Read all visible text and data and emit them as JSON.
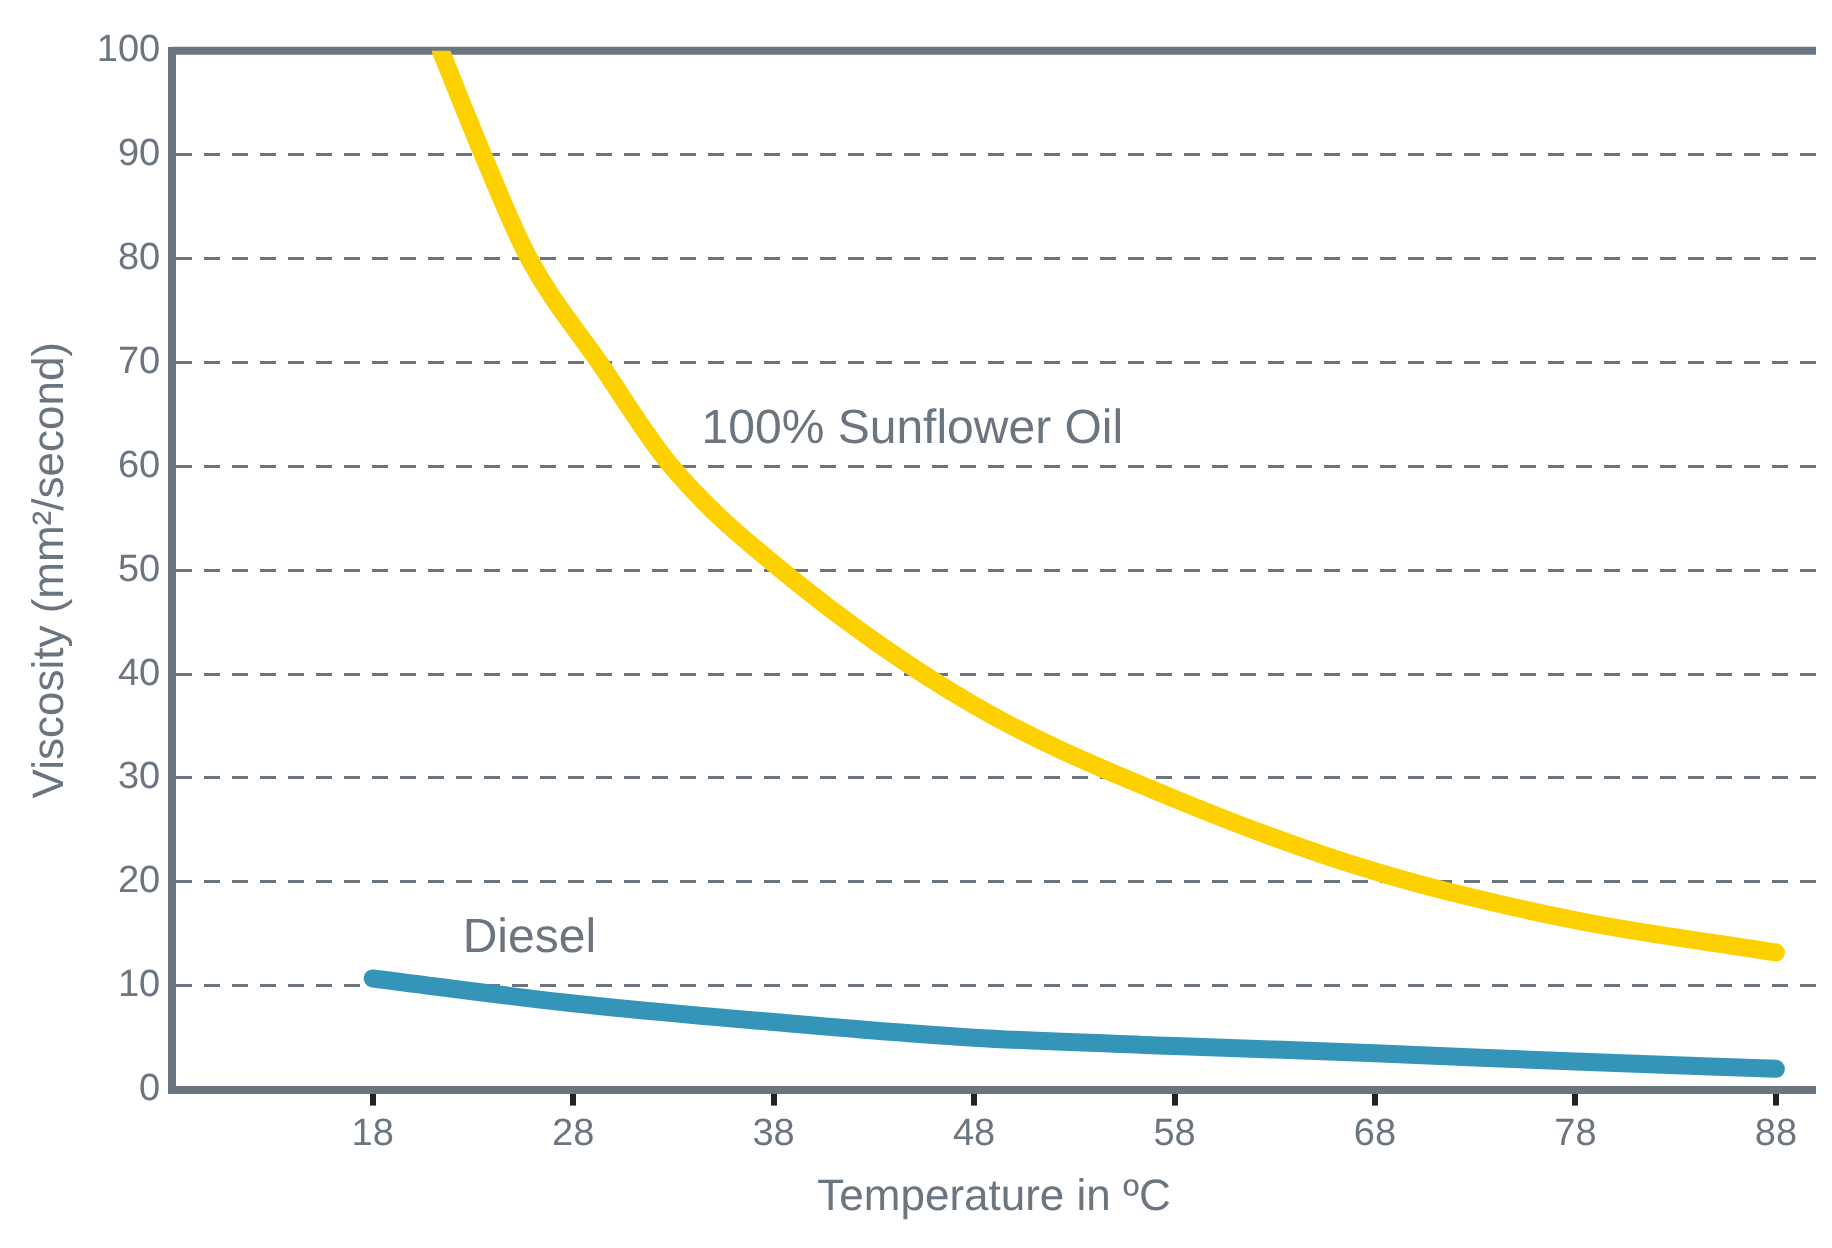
{
  "chart_data": {
    "type": "line",
    "xlabel": "Temperature in ºC",
    "ylabel": "Viscosity (mm²/second)",
    "xlim": [
      8,
      90
    ],
    "xticks": [
      18,
      28,
      38,
      48,
      58,
      68,
      78,
      88
    ],
    "ylim": [
      0,
      100
    ],
    "yticks": [
      0,
      10,
      20,
      30,
      40,
      50,
      60,
      70,
      80,
      90,
      100
    ],
    "grid": "y",
    "legend": false,
    "marker": "none",
    "line_style": "solid",
    "series": [
      {
        "name": "100% Sunflower Oil",
        "color": "#fdd000",
        "x": [
          21.4,
          23.5,
          25.8,
          29.3,
          32.9,
          38.4,
          48,
          58,
          68,
          78,
          88
        ],
        "values": [
          100,
          90,
          80,
          70,
          60,
          50,
          37,
          28,
          21,
          16.3,
          13.2
        ]
      },
      {
        "name": "Diesel",
        "color": "#3595b8",
        "x": [
          18,
          28,
          38,
          48,
          58,
          68,
          78,
          88
        ],
        "values": [
          10.7,
          8.3,
          6.5,
          5.0,
          4.2,
          3.5,
          2.7,
          2.0
        ]
      }
    ]
  }
}
